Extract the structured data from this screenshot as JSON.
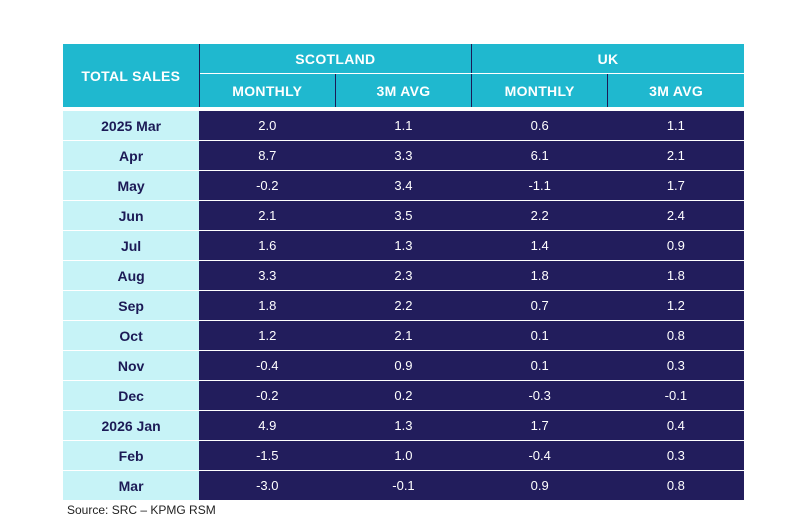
{
  "table": {
    "corner_label": "TOTAL SALES",
    "groups": [
      {
        "label": "SCOTLAND",
        "columns": [
          "MONTHLY",
          "3M AVG"
        ]
      },
      {
        "label": "UK",
        "columns": [
          "MONTHLY",
          "3M AVG"
        ]
      }
    ],
    "rows": [
      {
        "label": "2025 Mar",
        "values": [
          "2.0",
          "1.1",
          "0.6",
          "1.1"
        ]
      },
      {
        "label": "Apr",
        "values": [
          "8.7",
          "3.3",
          "6.1",
          "2.1"
        ]
      },
      {
        "label": "May",
        "values": [
          "-0.2",
          "3.4",
          "-1.1",
          "1.7"
        ]
      },
      {
        "label": "Jun",
        "values": [
          "2.1",
          "3.5",
          "2.2",
          "2.4"
        ]
      },
      {
        "label": "Jul",
        "values": [
          "1.6",
          "1.3",
          "1.4",
          "0.9"
        ]
      },
      {
        "label": "Aug",
        "values": [
          "3.3",
          "2.3",
          "1.8",
          "1.8"
        ]
      },
      {
        "label": "Sep",
        "values": [
          "1.8",
          "2.2",
          "0.7",
          "1.2"
        ]
      },
      {
        "label": "Oct",
        "values": [
          "1.2",
          "2.1",
          "0.1",
          "0.8"
        ]
      },
      {
        "label": "Nov",
        "values": [
          "-0.4",
          "0.9",
          "0.1",
          "0.3"
        ]
      },
      {
        "label": "Dec",
        "values": [
          "-0.2",
          "0.2",
          "-0.3",
          "-0.1"
        ]
      },
      {
        "label": "2026 Jan",
        "values": [
          "4.9",
          "1.3",
          "1.7",
          "0.4"
        ]
      },
      {
        "label": "Feb",
        "values": [
          "-1.5",
          "1.0",
          "-0.4",
          "0.3"
        ]
      },
      {
        "label": "Mar",
        "values": [
          "-3.0",
          "-0.1",
          "0.9",
          "0.8"
        ]
      }
    ]
  },
  "source_note": "Source: SRC – KPMG RSM",
  "colors": {
    "header_bg": "#1fb8cf",
    "label_bg": "#c7f3f7",
    "value_bg": "#221d5c",
    "label_text": "#1c1a56"
  }
}
